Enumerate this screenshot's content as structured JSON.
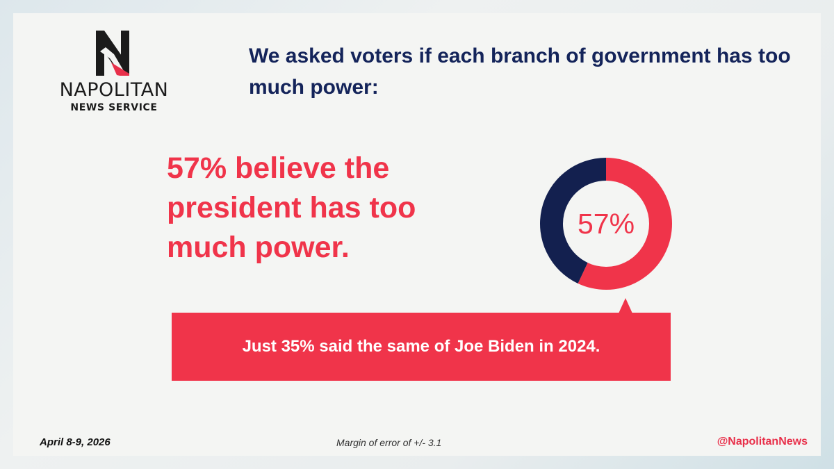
{
  "brand": {
    "name": "NAPOLITAN",
    "subtitle": "NEWS SERVICE"
  },
  "headline": "We asked voters if each branch of government has too much power:",
  "big_stat": "57% believe the president has too much power.",
  "callout": "Just 35% said the same of Joe Biden in 2024.",
  "footer": {
    "date": "April 8-9, 2026",
    "margin": "Margin of error of +/- 3.1",
    "handle": "@NapolitanNews"
  },
  "colors": {
    "accent_red": "#f0344a",
    "navy": "#14245a",
    "donut_remainder": "#13204f"
  },
  "chart_data": {
    "type": "pie",
    "variant": "donut",
    "center_label": "57%",
    "slices": [
      {
        "value": 57,
        "color": "#f0344a"
      },
      {
        "value": 43,
        "color": "#13204f"
      }
    ]
  }
}
